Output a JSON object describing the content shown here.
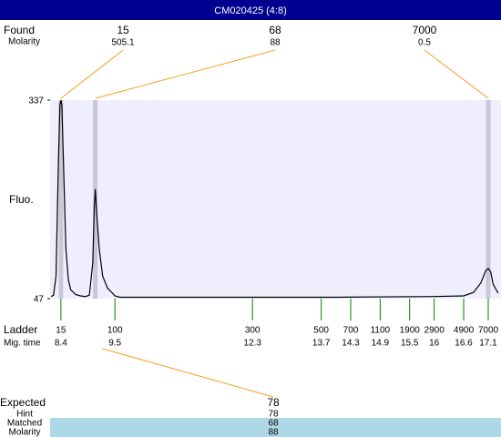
{
  "header": {
    "title": "CM020425 (4:8)"
  },
  "found": {
    "label": "Found",
    "molarity_label": "Molarity",
    "peaks": [
      {
        "size": 15,
        "molarity": 505.1,
        "time": 8.4
      },
      {
        "size": 68,
        "molarity": 88,
        "time": 9.1
      },
      {
        "size": 7000,
        "molarity": 0.5,
        "time": 17.1
      }
    ]
  },
  "chart_data": {
    "type": "line",
    "y_label": "Fluo.",
    "x_label": "Mig. time",
    "ladder_label": "Ladder",
    "xlim": [
      8.18,
      17.36
    ],
    "ylim": [
      47,
      337
    ],
    "yticks": [
      47,
      337
    ],
    "xticks": [
      8.4,
      9.5,
      12.3,
      13.7,
      14.3,
      14.9,
      15.5,
      16,
      16.6,
      17.1
    ],
    "ladder_sizes": [
      15,
      100,
      300,
      500,
      700,
      1100,
      1900,
      2900,
      4900,
      7000
    ],
    "x": [
      8.2,
      8.25,
      8.3,
      8.35,
      8.38,
      8.4,
      8.42,
      8.45,
      8.5,
      8.55,
      8.6,
      8.7,
      8.8,
      8.9,
      8.98,
      9.05,
      9.08,
      9.1,
      9.13,
      9.18,
      9.25,
      9.35,
      9.45,
      9.5,
      9.6,
      10,
      12,
      14,
      16,
      16.6,
      16.8,
      16.95,
      17.05,
      17.1,
      17.15,
      17.2,
      17.3
    ],
    "series": [
      {
        "color": "#000000",
        "values": [
          50,
          52,
          80,
          250,
          330,
          337,
          330,
          250,
          120,
          75,
          60,
          53,
          51,
          50,
          52,
          100,
          180,
          207,
          170,
          120,
          80,
          62,
          55,
          51,
          49,
          49,
          49,
          49,
          50,
          51,
          56,
          70,
          88,
          91,
          86,
          68,
          55
        ]
      }
    ]
  },
  "expected": {
    "label": "Expected",
    "value": 78,
    "rows": [
      {
        "label": "Hint",
        "value": 78
      },
      {
        "label": "Matched",
        "value": 68
      },
      {
        "label": "Molarity",
        "value": 88
      }
    ]
  }
}
